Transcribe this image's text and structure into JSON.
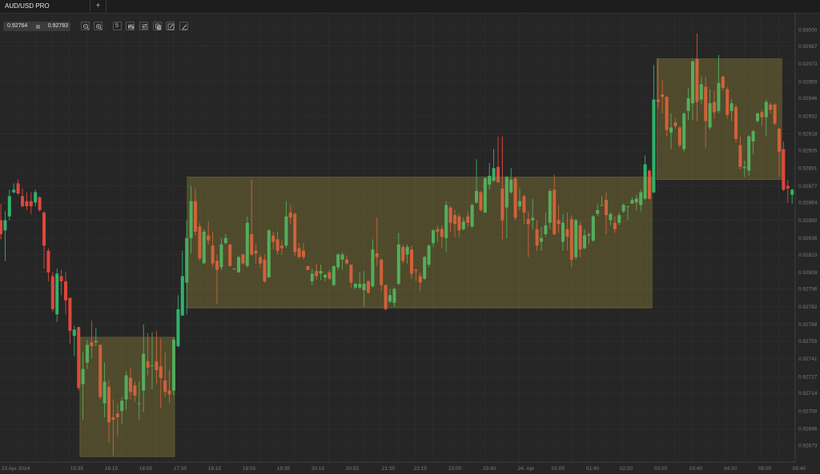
{
  "tabs": [
    {
      "label": "AUD/USD PRO",
      "active": true
    }
  ],
  "add_tab_label": "+",
  "toolbar": {
    "bid": "0.92764",
    "ask": "0.92783",
    "timeframe_label": "5",
    "icons": [
      "zoom-out-icon",
      "zoom-in-icon",
      "timeframe-icon",
      "chart-type-icon",
      "indicators-icon",
      "templates-icon",
      "drawing-icon",
      "pencil-icon"
    ]
  },
  "colors": {
    "background": "#262626",
    "up": "#2fb36b",
    "down": "#e0473a",
    "box_fill": "#afa03d",
    "grid": "#303030",
    "axis_text": "#7a7a7a"
  },
  "chart_data": {
    "type": "candlestick",
    "symbol": "AUD/USD PRO",
    "interval_minutes": 5,
    "ylim": [
      0.92664,
      0.9301
    ],
    "grid": true,
    "y_ticks": [
      "0.93000",
      "0.92987",
      "0.92973",
      "0.92959",
      "0.92946",
      "0.92932",
      "0.92918",
      "0.92905",
      "0.92891",
      "0.92877",
      "0.92864",
      "0.92850",
      "0.92836",
      "0.92823",
      "0.92809",
      "0.92796",
      "0.92782",
      "0.92768",
      "0.92755",
      "0.92741",
      "0.92727",
      "0.92714",
      "0.92700",
      "0.92686",
      "0.92673"
    ],
    "x_ticks": [
      "23 Apr 2014",
      "15:35",
      "16:15",
      "16:55",
      "17:35",
      "18:15",
      "18:55",
      "19:35",
      "20:15",
      "20:55",
      "21:35",
      "22:15",
      "23:00",
      "23:40",
      "24. Apr",
      "01:00",
      "01:40",
      "02:20",
      "03:00",
      "03:40",
      "04:20",
      "05:00",
      "05:40"
    ],
    "ohlc_columns": [
      "open",
      "high",
      "low",
      "close"
    ],
    "candles": [
      [
        0.9285,
        0.92863,
        0.92835,
        0.92839
      ],
      [
        0.92842,
        0.92857,
        0.92818,
        0.9285
      ],
      [
        0.92853,
        0.92874,
        0.9285,
        0.92869
      ],
      [
        0.92872,
        0.92879,
        0.92871,
        0.92874
      ],
      [
        0.92879,
        0.92882,
        0.9287,
        0.92871
      ],
      [
        0.92869,
        0.92875,
        0.9286,
        0.92861
      ],
      [
        0.92865,
        0.92872,
        0.92858,
        0.92861
      ],
      [
        0.92865,
        0.92872,
        0.92855,
        0.92861
      ],
      [
        0.92864,
        0.92874,
        0.92861,
        0.92872
      ],
      [
        0.92868,
        0.92869,
        0.92857,
        0.92858
      ],
      [
        0.92856,
        0.92857,
        0.92812,
        0.9283
      ],
      [
        0.92826,
        0.92828,
        0.92802,
        0.92809
      ],
      [
        0.92806,
        0.92809,
        0.92778,
        0.9278
      ],
      [
        0.92776,
        0.92812,
        0.9277,
        0.92808
      ],
      [
        0.92806,
        0.92811,
        0.92791,
        0.92802
      ],
      [
        0.92802,
        0.92809,
        0.92776,
        0.92787
      ],
      [
        0.92789,
        0.92789,
        0.92753,
        0.92763
      ],
      [
        0.92759,
        0.92767,
        0.92743,
        0.92764
      ],
      [
        0.92766,
        0.92766,
        0.92716,
        0.92718
      ],
      [
        0.92721,
        0.92746,
        0.92693,
        0.92733
      ],
      [
        0.92738,
        0.92756,
        0.92733,
        0.92752
      ],
      [
        0.92754,
        0.92771,
        0.92741,
        0.92751
      ],
      [
        0.92754,
        0.92765,
        0.92751,
        0.92755
      ],
      [
        0.92752,
        0.92752,
        0.92709,
        0.92711
      ],
      [
        0.92706,
        0.92738,
        0.92695,
        0.92723
      ],
      [
        0.92719,
        0.92725,
        0.92675,
        0.92691
      ],
      [
        0.92695,
        0.92709,
        0.92665,
        0.92693
      ],
      [
        0.92698,
        0.92706,
        0.9268,
        0.92695
      ],
      [
        0.927,
        0.92711,
        0.9269,
        0.92708
      ],
      [
        0.92709,
        0.92731,
        0.92701,
        0.92728
      ],
      [
        0.92726,
        0.92734,
        0.92709,
        0.92715
      ],
      [
        0.9272,
        0.92723,
        0.92707,
        0.92712
      ],
      [
        0.92706,
        0.92723,
        0.92693,
        0.92706
      ],
      [
        0.92716,
        0.92768,
        0.92699,
        0.92745
      ],
      [
        0.92739,
        0.92761,
        0.92728,
        0.92734
      ],
      [
        0.92736,
        0.92762,
        0.92717,
        0.92736
      ],
      [
        0.92739,
        0.92763,
        0.92721,
        0.92732
      ],
      [
        0.92735,
        0.92757,
        0.92702,
        0.92726
      ],
      [
        0.92724,
        0.92746,
        0.92711,
        0.92715
      ],
      [
        0.92716,
        0.92732,
        0.92706,
        0.92713
      ],
      [
        0.92716,
        0.92758,
        0.92712,
        0.92756
      ],
      [
        0.92751,
        0.92791,
        0.9275,
        0.9278
      ],
      [
        0.92775,
        0.92826,
        0.92775,
        0.92806
      ],
      [
        0.92801,
        0.9285,
        0.92776,
        0.92836
      ],
      [
        0.92836,
        0.92877,
        0.92824,
        0.92865
      ],
      [
        0.92865,
        0.92875,
        0.92838,
        0.92841
      ],
      [
        0.92845,
        0.92848,
        0.92818,
        0.9282
      ],
      [
        0.92816,
        0.92843,
        0.92816,
        0.92841
      ],
      [
        0.92838,
        0.92849,
        0.92831,
        0.92834
      ],
      [
        0.9283,
        0.92841,
        0.92813,
        0.92816
      ],
      [
        0.92818,
        0.92823,
        0.92784,
        0.92811
      ],
      [
        0.92813,
        0.92836,
        0.92811,
        0.92831
      ],
      [
        0.92832,
        0.92839,
        0.92831,
        0.92836
      ],
      [
        0.92831,
        0.92831,
        0.92814,
        0.92814
      ],
      [
        0.92812,
        0.92812,
        0.92811,
        0.92812
      ],
      [
        0.92809,
        0.92822,
        0.92809,
        0.92821
      ],
      [
        0.92823,
        0.92824,
        0.92815,
        0.92816
      ],
      [
        0.92814,
        0.92853,
        0.92813,
        0.92848
      ],
      [
        0.92839,
        0.92882,
        0.92822,
        0.92823
      ],
      [
        0.92826,
        0.92831,
        0.92816,
        0.92824
      ],
      [
        0.92821,
        0.92823,
        0.92813,
        0.92816
      ],
      [
        0.92819,
        0.92823,
        0.92801,
        0.92802
      ],
      [
        0.92805,
        0.92843,
        0.92805,
        0.92842
      ],
      [
        0.92838,
        0.92841,
        0.92827,
        0.92833
      ],
      [
        0.92835,
        0.92841,
        0.92823,
        0.92826
      ],
      [
        0.9283,
        0.92834,
        0.92823,
        0.92828
      ],
      [
        0.9283,
        0.92865,
        0.92828,
        0.92853
      ],
      [
        0.92856,
        0.92862,
        0.92847,
        0.92852
      ],
      [
        0.92855,
        0.92856,
        0.92822,
        0.92825
      ],
      [
        0.92828,
        0.92832,
        0.9282,
        0.92821
      ],
      [
        0.92826,
        0.92832,
        0.92819,
        0.92821
      ],
      [
        0.92814,
        0.92814,
        0.92811,
        0.92811
      ],
      [
        0.92802,
        0.92812,
        0.92799,
        0.92808
      ],
      [
        0.9281,
        0.92816,
        0.92803,
        0.92806
      ],
      [
        0.92808,
        0.92815,
        0.92803,
        0.9281
      ],
      [
        0.92805,
        0.92808,
        0.92802,
        0.92807
      ],
      [
        0.92809,
        0.92811,
        0.92803,
        0.92804
      ],
      [
        0.92799,
        0.92814,
        0.92798,
        0.92814
      ],
      [
        0.92813,
        0.92824,
        0.92811,
        0.92823
      ],
      [
        0.92819,
        0.92825,
        0.92811,
        0.92823
      ],
      [
        0.92819,
        0.92822,
        0.92815,
        0.92816
      ],
      [
        0.92815,
        0.92815,
        0.92797,
        0.92801
      ],
      [
        0.92797,
        0.92801,
        0.92796,
        0.928
      ],
      [
        0.92797,
        0.92809,
        0.92796,
        0.928
      ],
      [
        0.92795,
        0.9281,
        0.92782,
        0.928
      ],
      [
        0.92802,
        0.92803,
        0.92792,
        0.92793
      ],
      [
        0.92798,
        0.92835,
        0.92797,
        0.92827
      ],
      [
        0.92824,
        0.92852,
        0.92814,
        0.92821
      ],
      [
        0.92819,
        0.9282,
        0.92794,
        0.92799
      ],
      [
        0.92799,
        0.92799,
        0.92779,
        0.9278
      ],
      [
        0.92786,
        0.92796,
        0.92785,
        0.92791
      ],
      [
        0.92785,
        0.92797,
        0.92782,
        0.92796
      ],
      [
        0.928,
        0.9284,
        0.92799,
        0.92831
      ],
      [
        0.92829,
        0.92831,
        0.92816,
        0.92818
      ],
      [
        0.92823,
        0.92831,
        0.92816,
        0.92829
      ],
      [
        0.92827,
        0.9283,
        0.92804,
        0.92808
      ],
      [
        0.92811,
        0.92812,
        0.92802,
        0.9281
      ],
      [
        0.92806,
        0.92809,
        0.92794,
        0.92801
      ],
      [
        0.92804,
        0.92822,
        0.92803,
        0.92821
      ],
      [
        0.92815,
        0.92831,
        0.92813,
        0.9283
      ],
      [
        0.92832,
        0.92843,
        0.92829,
        0.92842
      ],
      [
        0.92843,
        0.92846,
        0.92833,
        0.92841
      ],
      [
        0.92843,
        0.92846,
        0.92828,
        0.92837
      ],
      [
        0.92836,
        0.92865,
        0.92825,
        0.92862
      ],
      [
        0.9286,
        0.92861,
        0.92841,
        0.92848
      ],
      [
        0.92854,
        0.92858,
        0.92837,
        0.92847
      ],
      [
        0.92853,
        0.92855,
        0.92837,
        0.92842
      ],
      [
        0.92843,
        0.92852,
        0.92842,
        0.92849
      ],
      [
        0.92853,
        0.92857,
        0.92845,
        0.92848
      ],
      [
        0.92845,
        0.92863,
        0.92844,
        0.92862
      ],
      [
        0.92864,
        0.92898,
        0.92863,
        0.92873
      ],
      [
        0.92872,
        0.92873,
        0.92857,
        0.92858
      ],
      [
        0.92856,
        0.92884,
        0.92856,
        0.92883
      ],
      [
        0.92878,
        0.92895,
        0.92874,
        0.92885
      ],
      [
        0.92881,
        0.92906,
        0.9288,
        0.92891
      ],
      [
        0.92892,
        0.92916,
        0.92879,
        0.9288
      ],
      [
        0.92875,
        0.92916,
        0.92835,
        0.9285
      ],
      [
        0.9286,
        0.92885,
        0.92836,
        0.92884
      ],
      [
        0.92872,
        0.92891,
        0.92871,
        0.92882
      ],
      [
        0.92883,
        0.92884,
        0.9285,
        0.92852
      ],
      [
        0.92861,
        0.92875,
        0.92858,
        0.92865
      ],
      [
        0.92869,
        0.9287,
        0.92847,
        0.92856
      ],
      [
        0.92851,
        0.92857,
        0.92821,
        0.92847
      ],
      [
        0.9285,
        0.92867,
        0.92843,
        0.92852
      ],
      [
        0.92843,
        0.9285,
        0.92826,
        0.9283
      ],
      [
        0.92833,
        0.92845,
        0.92826,
        0.92836
      ],
      [
        0.92839,
        0.92856,
        0.92837,
        0.92846
      ],
      [
        0.92848,
        0.92875,
        0.92843,
        0.92873
      ],
      [
        0.92874,
        0.92886,
        0.92838,
        0.92839
      ],
      [
        0.9285,
        0.92862,
        0.9284,
        0.92847
      ],
      [
        0.92833,
        0.92855,
        0.92826,
        0.92848
      ],
      [
        0.92843,
        0.92856,
        0.92826,
        0.92837
      ],
      [
        0.92851,
        0.92854,
        0.92813,
        0.92819
      ],
      [
        0.92821,
        0.92851,
        0.92819,
        0.9285
      ],
      [
        0.92846,
        0.92849,
        0.92821,
        0.92827
      ],
      [
        0.92828,
        0.92843,
        0.92827,
        0.92838
      ],
      [
        0.92838,
        0.9284,
        0.92831,
        0.92839
      ],
      [
        0.92834,
        0.92854,
        0.92833,
        0.92853
      ],
      [
        0.92855,
        0.92863,
        0.92853,
        0.92858
      ],
      [
        0.92862,
        0.92869,
        0.92862,
        0.92862
      ],
      [
        0.92866,
        0.92872,
        0.92839,
        0.92854
      ],
      [
        0.9285,
        0.92856,
        0.92846,
        0.92855
      ],
      [
        0.92848,
        0.92853,
        0.9284,
        0.92843
      ],
      [
        0.92848,
        0.92856,
        0.92846,
        0.92854
      ],
      [
        0.92857,
        0.92863,
        0.92856,
        0.92862
      ],
      [
        0.92861,
        0.92861,
        0.9285,
        0.92861
      ],
      [
        0.92863,
        0.92868,
        0.92863,
        0.92866
      ],
      [
        0.92864,
        0.9287,
        0.92858,
        0.92867
      ],
      [
        0.92862,
        0.92874,
        0.92857,
        0.92872
      ],
      [
        0.92867,
        0.92901,
        0.92866,
        0.92894
      ],
      [
        0.92889,
        0.9289,
        0.92866,
        0.92867
      ],
      [
        0.92872,
        0.92972,
        0.92871,
        0.92945
      ],
      [
        0.92945,
        0.92977,
        0.92938,
        0.92943
      ],
      [
        0.92949,
        0.9296,
        0.92934,
        0.92947
      ],
      [
        0.92947,
        0.92948,
        0.92916,
        0.92921
      ],
      [
        0.92919,
        0.92934,
        0.92906,
        0.92923
      ],
      [
        0.92927,
        0.9293,
        0.92922,
        0.92924
      ],
      [
        0.92923,
        0.92924,
        0.92907,
        0.92909
      ],
      [
        0.92906,
        0.92935,
        0.92904,
        0.92934
      ],
      [
        0.92936,
        0.92954,
        0.92929,
        0.92946
      ],
      [
        0.92942,
        0.92976,
        0.92929,
        0.92975
      ],
      [
        0.92977,
        0.92997,
        0.92928,
        0.92943
      ],
      [
        0.92945,
        0.92963,
        0.92941,
        0.92957
      ],
      [
        0.92955,
        0.92963,
        0.92907,
        0.92928
      ],
      [
        0.92923,
        0.92953,
        0.92921,
        0.92942
      ],
      [
        0.92943,
        0.92952,
        0.9293,
        0.92935
      ],
      [
        0.92936,
        0.9298,
        0.92934,
        0.92958
      ],
      [
        0.92963,
        0.92964,
        0.92952,
        0.92954
      ],
      [
        0.92953,
        0.92955,
        0.9293,
        0.92933
      ],
      [
        0.92936,
        0.92945,
        0.92928,
        0.92942
      ],
      [
        0.92939,
        0.92941,
        0.92911,
        0.92914
      ],
      [
        0.92909,
        0.92916,
        0.9289,
        0.92892
      ],
      [
        0.92891,
        0.92897,
        0.92884,
        0.92892
      ],
      [
        0.92889,
        0.92917,
        0.92885,
        0.92916
      ],
      [
        0.92912,
        0.92921,
        0.92902,
        0.9292
      ],
      [
        0.92928,
        0.92935,
        0.92927,
        0.92934
      ],
      [
        0.92935,
        0.92937,
        0.92924,
        0.92931
      ],
      [
        0.92931,
        0.92945,
        0.92916,
        0.92943
      ],
      [
        0.92941,
        0.92943,
        0.92934,
        0.92937
      ],
      [
        0.92941,
        0.92942,
        0.92925,
        0.92926
      ],
      [
        0.92922,
        0.92923,
        0.92884,
        0.92904
      ],
      [
        0.92906,
        0.92912,
        0.92873,
        0.92874
      ],
      [
        0.92877,
        0.92882,
        0.92864,
        0.92875
      ],
      [
        0.9287,
        0.92875,
        0.92863,
        0.92874
      ]
    ],
    "ranges": [
      {
        "from_candle": 18.3,
        "to_candle": 40.2,
        "top": 0.92758,
        "bottom": 0.92664
      },
      {
        "from_candle": 43.1,
        "to_candle": 150.6,
        "top": 0.92884,
        "bottom": 0.92781
      },
      {
        "from_candle": 151.7,
        "to_candle": 180.6,
        "top": 0.92977,
        "bottom": 0.92882
      }
    ]
  }
}
